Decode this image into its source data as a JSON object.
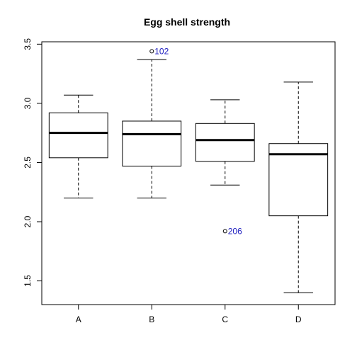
{
  "chart_data": {
    "type": "box",
    "title": "Egg shell strength",
    "xlabel": "",
    "ylabel": "",
    "categories": [
      "A",
      "B",
      "C",
      "D"
    ],
    "ylim": [
      1.3,
      3.52
    ],
    "yticks": [
      1.5,
      2.0,
      2.5,
      3.0,
      3.5
    ],
    "ytick_labels": [
      "1.5",
      "2.0",
      "2.5",
      "3.0",
      "3.5"
    ],
    "grid": false,
    "boxes": [
      {
        "category": "A",
        "whisker_low": 2.2,
        "q1": 2.54,
        "median": 2.75,
        "q3": 2.92,
        "whisker_high": 3.07
      },
      {
        "category": "B",
        "whisker_low": 2.2,
        "q1": 2.47,
        "median": 2.74,
        "q3": 2.85,
        "whisker_high": 3.37
      },
      {
        "category": "C",
        "whisker_low": 2.31,
        "q1": 2.51,
        "median": 2.69,
        "q3": 2.83,
        "whisker_high": 3.03
      },
      {
        "category": "D",
        "whisker_low": 1.4,
        "q1": 2.05,
        "median": 2.57,
        "q3": 2.66,
        "whisker_high": 3.18
      }
    ],
    "outliers": [
      {
        "category": "B",
        "value": 3.44,
        "label": "102"
      },
      {
        "category": "C",
        "value": 1.92,
        "label": "206"
      }
    ],
    "colors": {
      "axis": "#000000",
      "box": "#000000",
      "outlier_label": "#2020c0"
    }
  }
}
